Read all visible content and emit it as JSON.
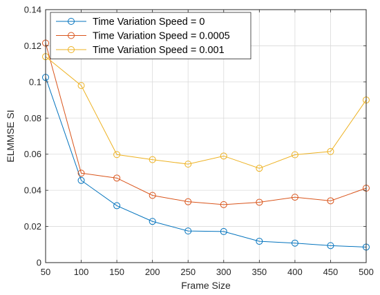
{
  "chart_data": {
    "type": "line",
    "title": "",
    "xlabel": "Frame Size",
    "ylabel": "ELMMSE SI",
    "xlim": [
      50,
      500
    ],
    "ylim": [
      0,
      0.14
    ],
    "xticks": [
      50,
      100,
      150,
      200,
      250,
      300,
      350,
      400,
      450,
      500
    ],
    "yticks": [
      0,
      0.02,
      0.04,
      0.06,
      0.08,
      0.1,
      0.12,
      0.14
    ],
    "ytick_labels": [
      "0",
      "0.02",
      "0.04",
      "0.06",
      "0.08",
      "0.1",
      "0.12",
      "0.14"
    ],
    "grid": true,
    "legend_position": "top-left",
    "x": [
      50,
      100,
      150,
      200,
      250,
      300,
      350,
      400,
      450,
      500
    ],
    "series": [
      {
        "name": "Time Variation Speed = 0",
        "color": "#0072BD",
        "marker": "circle",
        "values": [
          0.1025,
          0.0455,
          0.0315,
          0.0228,
          0.0175,
          0.0172,
          0.0118,
          0.0108,
          0.0094,
          0.0086
        ]
      },
      {
        "name": "Time Variation Speed = 0.0005",
        "color": "#D95319",
        "marker": "circle",
        "values": [
          0.1215,
          0.0495,
          0.0468,
          0.0372,
          0.0337,
          0.0321,
          0.0334,
          0.0362,
          0.0342,
          0.0412
        ]
      },
      {
        "name": "Time Variation Speed = 0.001",
        "color": "#EDB120",
        "marker": "circle",
        "values": [
          0.114,
          0.098,
          0.0598,
          0.057,
          0.0545,
          0.059,
          0.0522,
          0.0597,
          0.0615,
          0.09
        ]
      }
    ]
  }
}
